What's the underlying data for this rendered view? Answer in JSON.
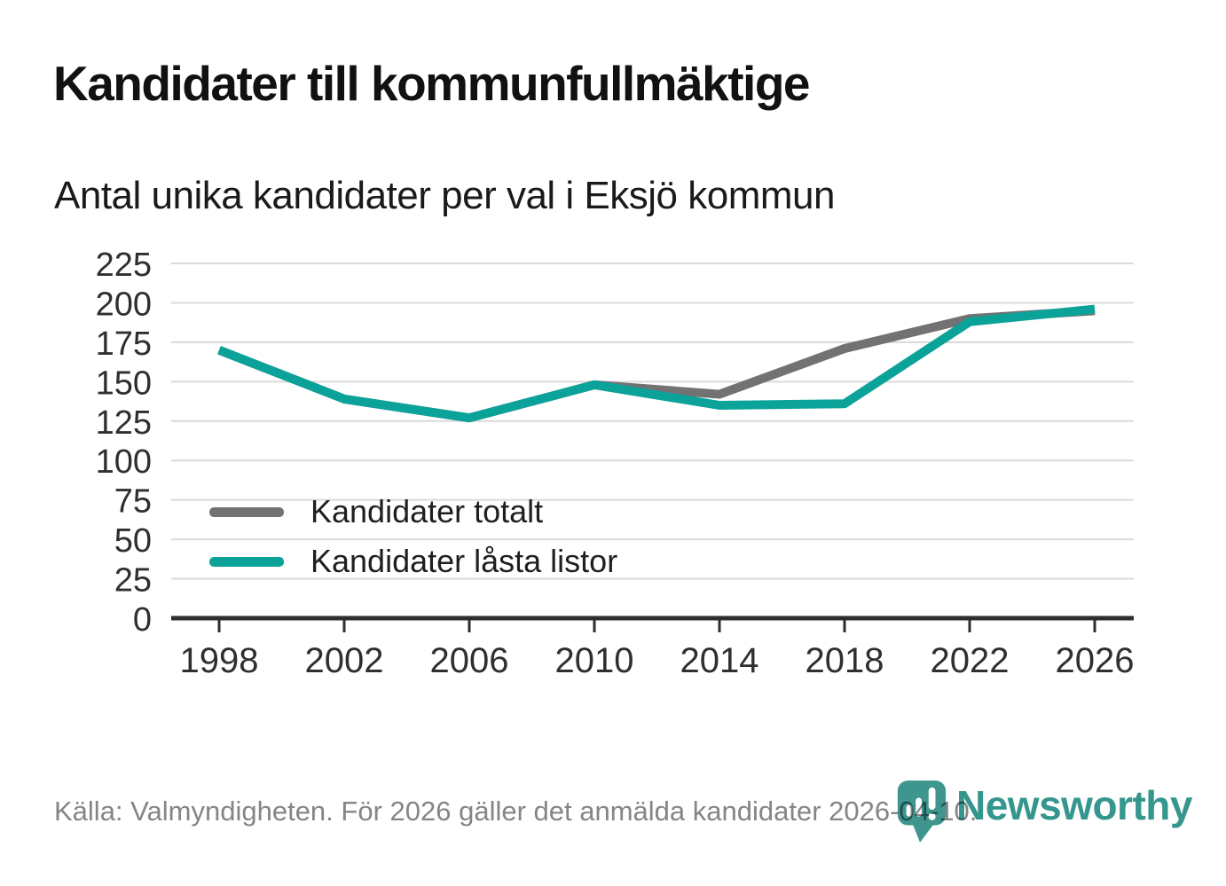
{
  "header": {
    "title": "Kandidater till kommunfullmäktige",
    "subtitle": "Antal unika kandidater per val i Eksjö kommun"
  },
  "chart_data": {
    "type": "line",
    "title": "Kandidater till kommunfullmäktige",
    "subtitle": "Antal unika kandidater per val i Eksjö kommun",
    "categories": [
      1998,
      2002,
      2006,
      2010,
      2014,
      2018,
      2022,
      2026
    ],
    "series": [
      {
        "name": "Kandidater totalt",
        "color": "#727272",
        "values": [
          170,
          139,
          127,
          148,
          142,
          171,
          190,
          195
        ]
      },
      {
        "name": "Kandidater låsta listor",
        "color": "#0ba29a",
        "values": [
          170,
          139,
          127,
          148,
          135,
          136,
          188,
          196
        ]
      }
    ],
    "xlabel": "",
    "ylabel": "",
    "ylim": [
      0,
      225
    ],
    "y_ticks": [
      0,
      25,
      50,
      75,
      100,
      125,
      150,
      175,
      200,
      225
    ],
    "grid": "horizontal",
    "legend_position": "inside-bottom-left"
  },
  "footer": {
    "source": "Källa: Valmyndigheten. För 2026 gäller det anmälda kandidater 2026-04-10.",
    "brand": "Newsworthy"
  },
  "colors": {
    "accent_teal": "#0ba29a",
    "neutral_gray": "#727272",
    "logo_teal": "#3f968f",
    "brand_text_teal": "#35968e",
    "axis": "#2e2e2e",
    "grid": "#dadada",
    "tick_label": "#2f2f2f",
    "source_text": "#858585"
  }
}
